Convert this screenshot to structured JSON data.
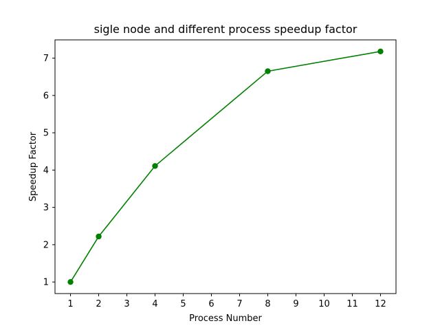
{
  "chart_data": {
    "type": "line",
    "title": "sigle node and different process speedup factor",
    "xlabel": "Process Number",
    "ylabel": "Speedup Factor",
    "x": [
      1,
      2,
      4,
      8,
      12
    ],
    "series": [
      {
        "values": [
          1.0,
          2.22,
          4.11,
          6.65,
          7.18
        ],
        "color": "#008000",
        "marker": "circle"
      }
    ],
    "xticks": [
      1,
      2,
      3,
      4,
      5,
      6,
      7,
      8,
      9,
      10,
      11,
      12
    ],
    "yticks": [
      1,
      2,
      3,
      4,
      5,
      6,
      7
    ],
    "xlim": [
      0.45,
      12.55
    ],
    "ylim": [
      0.69,
      7.49
    ],
    "grid": false,
    "legend": "none"
  }
}
